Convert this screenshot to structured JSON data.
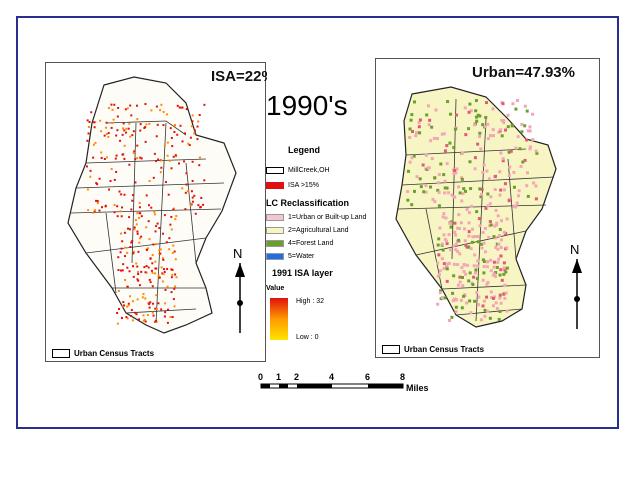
{
  "title": "1990's",
  "left_map": {
    "stat": "ISA=22%",
    "tracts_label": "Urban Census Tracts",
    "north": "N"
  },
  "right_map": {
    "stat": "Urban=47.93%",
    "tracts_label": "Urban Census Tracts",
    "north": "N"
  },
  "legend": {
    "heading": "Legend",
    "boundary": "MillCreek,OH",
    "isa": "ISA >15%",
    "lc_heading": "LC Reclassification",
    "lc_classes": [
      {
        "label": "1=Urban or Built-up Land",
        "color": "#f4c6cf"
      },
      {
        "label": "2=Agricultural Land",
        "color": "#f8f5c4"
      },
      {
        "label": "4=Forest Land",
        "color": "#6aa02a"
      },
      {
        "label": "5=Water",
        "color": "#1f6fe0"
      }
    ],
    "isa_layer_heading": "1991 ISA layer",
    "value_label": "Value",
    "high": "High : 32",
    "low": "Low : 0"
  },
  "scale_bar": {
    "ticks": [
      "0",
      "1",
      "2",
      "4",
      "6",
      "8"
    ],
    "unit": "Miles"
  },
  "colors": {
    "frame": "#2a2f8f",
    "isa": "#e01010"
  }
}
